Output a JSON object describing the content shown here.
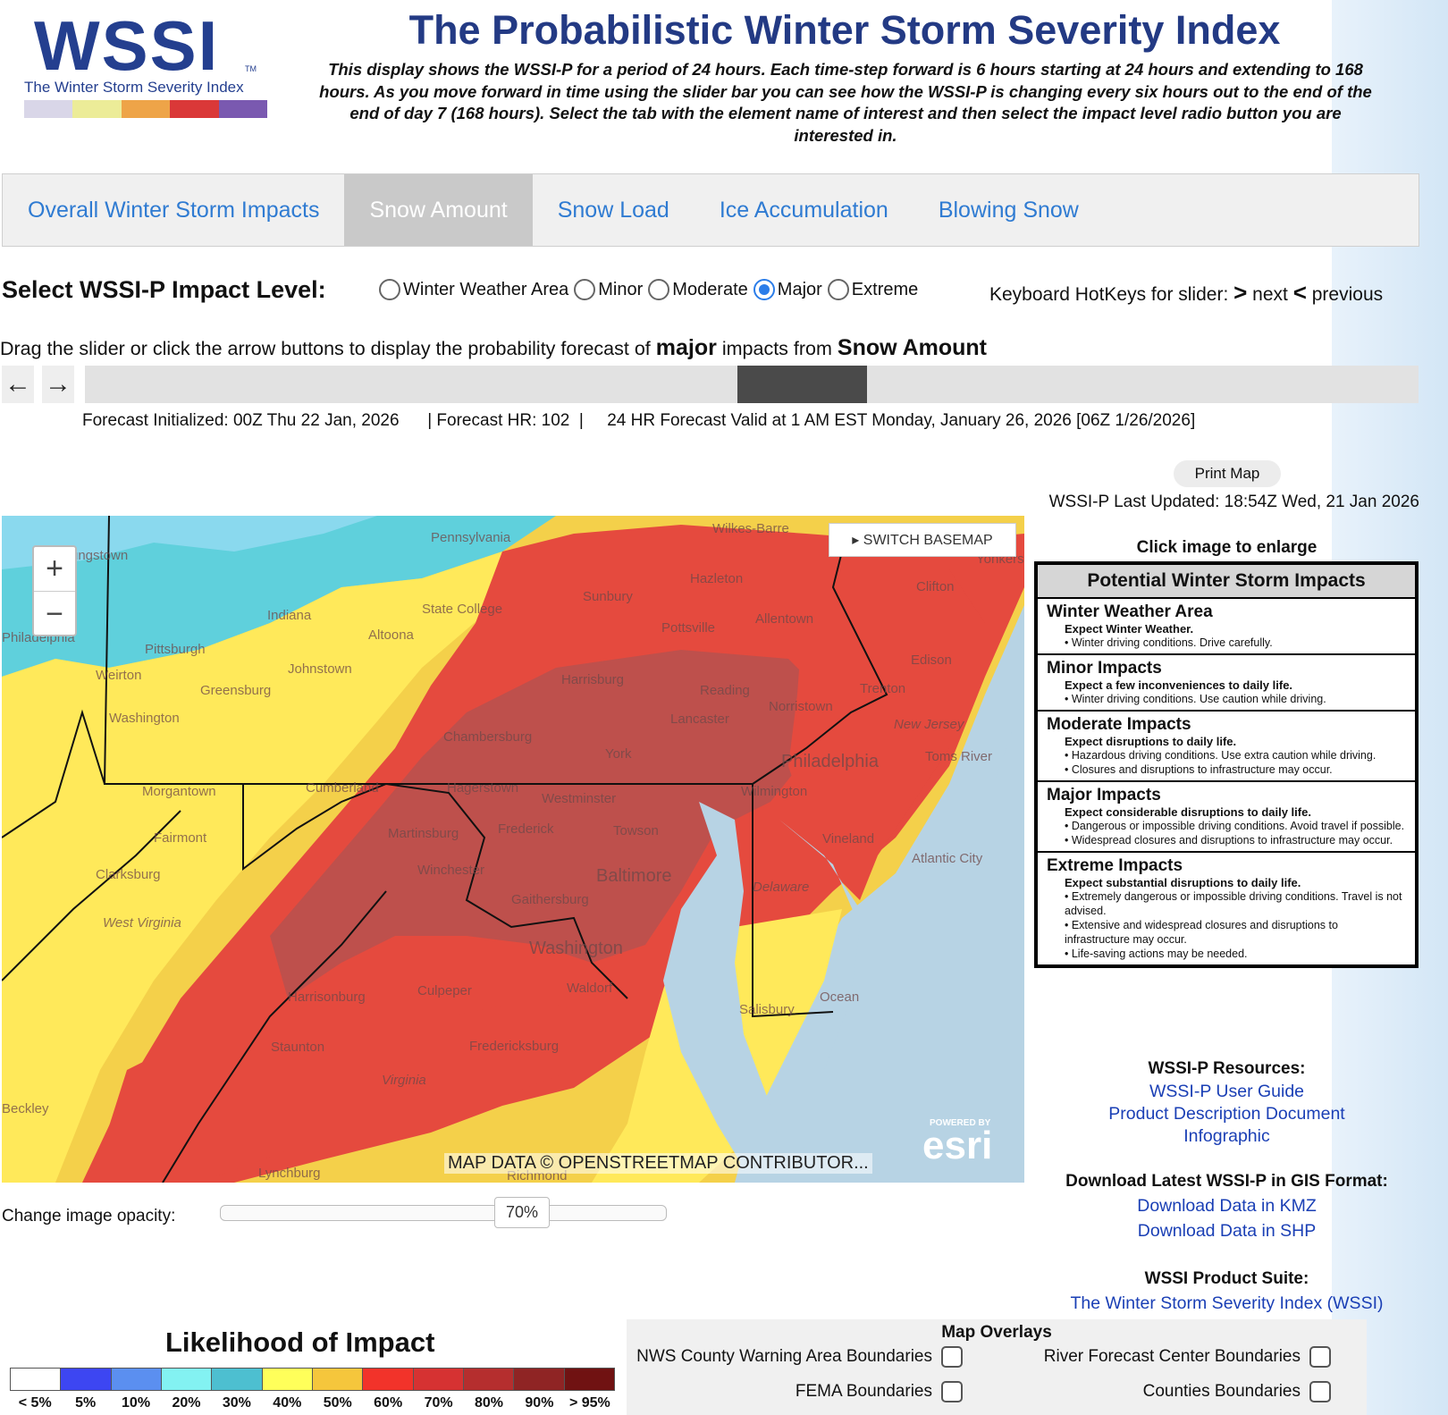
{
  "header": {
    "logo_text": "WSSI",
    "logo_tm": "TM",
    "logo_subtitle": "The Winter Storm Severity Index",
    "logo_colors": [
      "#d9d6e8",
      "#ecec98",
      "#eea448",
      "#da3838",
      "#7a59b0"
    ],
    "title": "The Probabilistic Winter Storm Severity Index",
    "intro": "This display shows the WSSI-P for a period of 24 hours. Each time-step forward is 6 hours starting at 24 hours and extending to 168 hours. As you move forward in time using the slider bar you can see how the WSSI-P is changing every six hours out to the end of the end of day 7 (168 hours). Select the tab with the element name of interest and then select the impact level radio button you are interested in."
  },
  "tabs": [
    {
      "label": "Overall Winter Storm Impacts",
      "active": false
    },
    {
      "label": "Snow Amount",
      "active": true
    },
    {
      "label": "Snow Load",
      "active": false
    },
    {
      "label": "Ice Accumulation",
      "active": false
    },
    {
      "label": "Blowing Snow",
      "active": false
    }
  ],
  "impact_level": {
    "label": "Select WSSI-P Impact Level:",
    "options": [
      {
        "label": "Winter Weather Area",
        "checked": false
      },
      {
        "label": "Minor",
        "checked": false
      },
      {
        "label": "Moderate",
        "checked": false
      },
      {
        "label": "Major",
        "checked": true
      },
      {
        "label": "Extreme",
        "checked": false
      }
    ],
    "hotkeys_prefix": "Keyboard HotKeys for slider:",
    "hotkey_next_symbol": ">",
    "hotkey_next": "next",
    "hotkey_prev_symbol": "<",
    "hotkey_prev": "previous"
  },
  "slider": {
    "drag_prefix": "Drag the slider or click the arrow buttons to display the probability forecast of",
    "impact_word": "major",
    "from_word": "impacts from",
    "element": "Snow Amount",
    "prev_arrow": "←",
    "next_arrow": "→",
    "forecast_initialized": "Forecast Initialized: 00Z Thu 22 Jan, 2026",
    "forecast_hr": "| Forecast HR: 102  |",
    "forecast_valid": "24 HR Forecast Valid at 1 AM EST Monday, January 26, 2026 [06Z 1/26/2026]"
  },
  "print_button": "Print Map",
  "last_updated": "WSSI-P Last Updated: 18:54Z Wed, 21 Jan 2026",
  "map": {
    "zoom_in": "+",
    "zoom_out": "−",
    "switch_basemap": "▸ SWITCH BASEMAP",
    "attribution": "MAP DATA © OPENSTREETMAP CONTRIBUTOR...",
    "esri_powered": "POWERED BY",
    "esri": "esri",
    "cities": [
      "Pennsylvania",
      "Wilkes-Barre",
      "Yonkers",
      "Hazleton",
      "Sunbury",
      "State College",
      "Indiana",
      "Altoona",
      "Pittsburgh",
      "Pottsville",
      "Allentown",
      "Clifton",
      "Johnstown",
      "Edison",
      "Harrisburg",
      "Reading",
      "Greensburg",
      "Washington",
      "Trenton",
      "Lancaster",
      "Norristown",
      "Chambersburg",
      "New Jersey",
      "York",
      "Philadelphia",
      "Toms River",
      "Morgantown",
      "Cumberland",
      "Hagerstown",
      "Westminster",
      "Wilmington",
      "Fairmont",
      "Martinsburg",
      "Frederick",
      "Towson",
      "Vineland",
      "Winchester",
      "Clarksburg",
      "Baltimore",
      "Atlantic City",
      "West Virginia",
      "Delaware",
      "Gaithersburg",
      "Washington",
      "Ocean",
      "Waldorf",
      "Harrisonburg",
      "Culpeper",
      "Salisbury",
      "Staunton",
      "Fredericksburg",
      "Virginia",
      "Lynchburg",
      "Richmond",
      "Beckley",
      "Weirton",
      "Philadelphia",
      "Youngstown"
    ]
  },
  "opacity": {
    "label": "Change image opacity:",
    "value": "70%",
    "fraction": 0.7
  },
  "legend": {
    "title": "Likelihood of Impact",
    "colors": [
      "#ffffff",
      "#3d46f2",
      "#5b8ff0",
      "#83f2f2",
      "#4dbfd0",
      "#ffff5a",
      "#f5c63c",
      "#f2332a",
      "#d63232",
      "#b52e2e",
      "#8f2424",
      "#701212"
    ],
    "labels": [
      "< 5%",
      "5%",
      "10%",
      "20%",
      "30%",
      "40%",
      "50%",
      "60%",
      "70%",
      "80%",
      "90%",
      "> 95%"
    ]
  },
  "overlays": {
    "title": "Map Overlays",
    "items": [
      {
        "label": "NWS County Warning Area Boundaries",
        "checked": false
      },
      {
        "label": "River Forecast Center Boundaries",
        "checked": false
      },
      {
        "label": "FEMA Boundaries",
        "checked": false
      },
      {
        "label": "Counties Boundaries",
        "checked": false
      }
    ]
  },
  "impacts_table": {
    "enlarge": "Click image to enlarge",
    "title": "Potential Winter Storm Impacts",
    "sections": [
      {
        "name": "Winter Weather Area",
        "expect": "Expect Winter Weather.",
        "bullets": [
          "• Winter driving conditions. Drive carefully."
        ]
      },
      {
        "name": "Minor Impacts",
        "expect": "Expect a few inconveniences to daily life.",
        "bullets": [
          "• Winter driving conditions. Use caution while driving."
        ]
      },
      {
        "name": "Moderate Impacts",
        "expect": "Expect disruptions to daily life.",
        "bullets": [
          "• Hazardous driving conditions. Use extra caution while driving.",
          "• Closures and disruptions to infrastructure may occur."
        ]
      },
      {
        "name": "Major Impacts",
        "expect": "Expect considerable disruptions to daily life.",
        "bullets": [
          "• Dangerous or impossible driving conditions. Avoid travel if possible.",
          "• Widespread closures and disruptions to infrastructure may occur."
        ]
      },
      {
        "name": "Extreme Impacts",
        "expect": "Expect substantial disruptions to daily life.",
        "bullets": [
          "• Extremely dangerous or impossible driving conditions. Travel is not advised.",
          "• Extensive and widespread closures and disruptions to infrastructure may occur.",
          "• Life-saving actions may be needed."
        ]
      }
    ]
  },
  "resources": {
    "title": "WSSI-P Resources:",
    "links": [
      "WSSI-P User Guide",
      "Product Description Document",
      "Infographic"
    ],
    "download_title": "Download Latest WSSI-P in GIS Format:",
    "download_links": [
      "Download Data in KMZ",
      "Download Data in SHP"
    ],
    "suite_title": "WSSI Product Suite:",
    "suite_link": "The Winter Storm Severity Index (WSSI)"
  }
}
